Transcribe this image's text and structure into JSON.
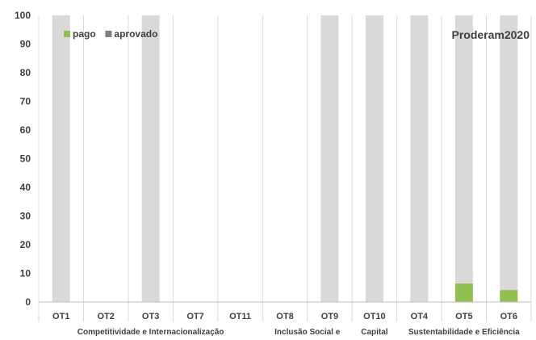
{
  "chart_data": {
    "type": "bar",
    "stacked": true,
    "title": "Proderam2020",
    "categories": [
      "OT1",
      "OT2",
      "OT3",
      "OT7",
      "OT11",
      "OT8",
      "OT9",
      "OT10",
      "OT4",
      "OT5",
      "OT6"
    ],
    "groups": [
      {
        "label": "Competitividade e Internacionalização",
        "categories": [
          "OT1",
          "OT2",
          "OT3",
          "OT7",
          "OT11"
        ]
      },
      {
        "label": "Inclusão Social e",
        "categories": [
          "OT8",
          "OT9"
        ]
      },
      {
        "label": "Capital",
        "categories": [
          "OT10"
        ]
      },
      {
        "label": "Sustentabilidade e Eficiência",
        "categories": [
          "OT4",
          "OT5",
          "OT6"
        ]
      }
    ],
    "series": [
      {
        "name": "pago",
        "color": "#92c050",
        "values": [
          0,
          0,
          0,
          0,
          0,
          0,
          0,
          0,
          0,
          6.5,
          4.2
        ]
      },
      {
        "name": "aprovado",
        "color": "#d9d9d9",
        "legend_color": "#808080",
        "values": [
          100,
          0,
          100,
          0,
          0,
          0,
          100,
          100,
          100,
          93.5,
          95.8
        ]
      }
    ],
    "ylim": [
      0,
      100
    ],
    "yticks": [
      0,
      10,
      20,
      30,
      40,
      50,
      60,
      70,
      80,
      90,
      100
    ],
    "grid": "vertical category separators",
    "legend_position": "top-left"
  }
}
